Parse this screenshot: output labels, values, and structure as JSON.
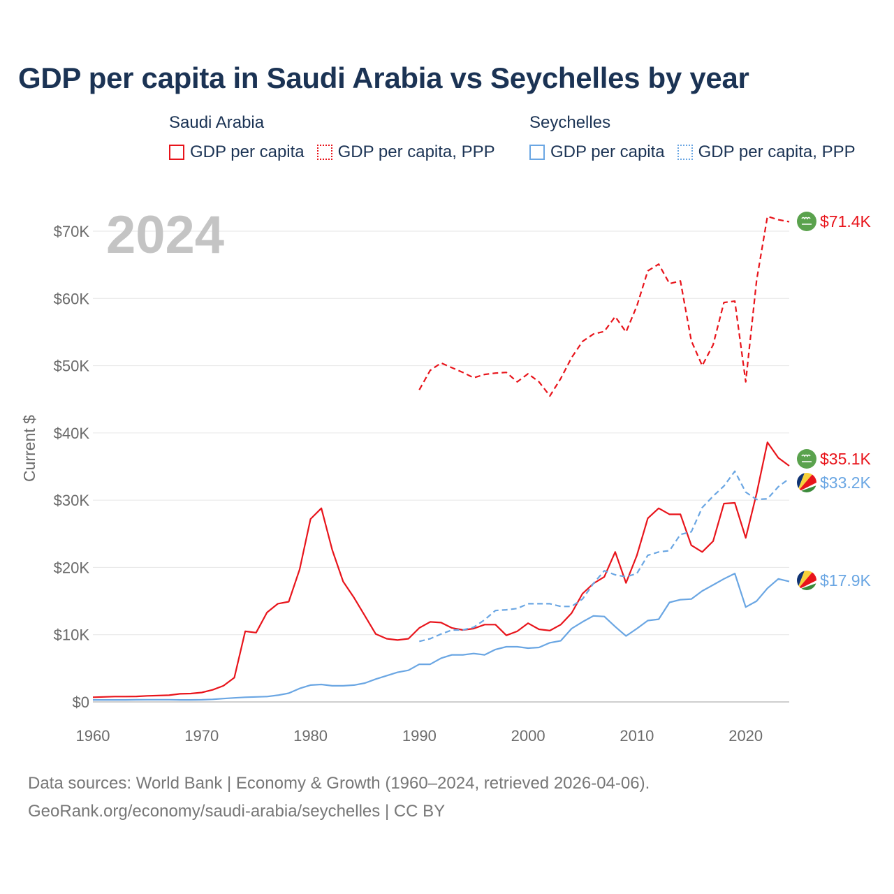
{
  "title": "GDP per capita in Saudi Arabia vs Seychelles by year",
  "legend": {
    "groups": [
      {
        "name": "Saudi Arabia",
        "items": [
          {
            "label": "GDP per capita",
            "color": "#e8141b",
            "style": "solid"
          },
          {
            "label": "GDP per capita, PPP",
            "color": "#e8141b",
            "style": "dotted"
          }
        ]
      },
      {
        "name": "Seychelles",
        "items": [
          {
            "label": "GDP per capita",
            "color": "#6aa6e3",
            "style": "solid"
          },
          {
            "label": "GDP per capita, PPP",
            "color": "#6aa6e3",
            "style": "dotted"
          }
        ]
      }
    ]
  },
  "footer": {
    "line1": "Data sources: World Bank | Economy & Growth (1960–2024, retrieved 2026-04-06).",
    "line2": "GeoRank.org/economy/saudi-arabia/seychelles | CC BY"
  },
  "chart_data": {
    "type": "line",
    "year_label": "2024",
    "ylabel": "Current $",
    "xlim": [
      1960,
      2024
    ],
    "ylim": [
      0,
      70000
    ],
    "x_ticks": [
      1960,
      1970,
      1980,
      1990,
      2000,
      2010,
      2020
    ],
    "x_tick_labels": [
      "1960",
      "1970",
      "1980",
      "1990",
      "2000",
      "2010",
      "2020"
    ],
    "y_ticks": [
      0,
      10000,
      20000,
      30000,
      40000,
      50000,
      60000,
      70000
    ],
    "y_tick_labels": [
      "$0",
      "$10K",
      "$20K",
      "$30K",
      "$40K",
      "$50K",
      "$60K",
      "$70K"
    ],
    "grid": true,
    "series": [
      {
        "name": "Saudi Arabia GDP per capita PPP",
        "color": "#e8141b",
        "dash": "dashed",
        "x": [
          1990,
          1991,
          1992,
          1993,
          1994,
          1995,
          1996,
          1997,
          1998,
          1999,
          2000,
          2001,
          2002,
          2003,
          2004,
          2005,
          2006,
          2007,
          2008,
          2009,
          2010,
          2011,
          2012,
          2013,
          2014,
          2015,
          2016,
          2017,
          2018,
          2019,
          2020,
          2021,
          2022,
          2023,
          2024
        ],
        "values": [
          46400,
          49300,
          50400,
          49700,
          49000,
          48200,
          48700,
          48900,
          49000,
          47600,
          48800,
          47600,
          45500,
          48100,
          51200,
          53600,
          54700,
          55100,
          57300,
          55000,
          58900,
          64100,
          65100,
          62200,
          62600,
          53700,
          50000,
          53100,
          59400,
          59600,
          47600,
          62700,
          72200,
          71700,
          71400
        ],
        "end_label": "$71.4K",
        "icon": "saudi-flag-icon"
      },
      {
        "name": "Saudi Arabia GDP per capita",
        "color": "#e8141b",
        "dash": "solid",
        "x": [
          1960,
          1961,
          1962,
          1963,
          1964,
          1965,
          1966,
          1967,
          1968,
          1969,
          1970,
          1971,
          1972,
          1973,
          1974,
          1975,
          1976,
          1977,
          1978,
          1979,
          1980,
          1981,
          1982,
          1983,
          1984,
          1985,
          1986,
          1987,
          1988,
          1989,
          1990,
          1991,
          1992,
          1993,
          1994,
          1995,
          1996,
          1997,
          1998,
          1999,
          2000,
          2001,
          2002,
          2003,
          2004,
          2005,
          2006,
          2007,
          2008,
          2009,
          2010,
          2011,
          2012,
          2013,
          2014,
          2015,
          2016,
          2017,
          2018,
          2019,
          2020,
          2021,
          2022,
          2023,
          2024
        ],
        "values": [
          700,
          750,
          800,
          800,
          820,
          900,
          950,
          1000,
          1200,
          1250,
          1400,
          1800,
          2400,
          3600,
          10500,
          10300,
          13300,
          14600,
          14900,
          19700,
          27200,
          28800,
          22600,
          17900,
          15500,
          12800,
          10100,
          9400,
          9200,
          9400,
          11000,
          11900,
          11800,
          11000,
          10700,
          10900,
          11500,
          11500,
          9900,
          10500,
          11700,
          10800,
          10600,
          11500,
          13200,
          16100,
          17600,
          18600,
          22300,
          17700,
          21800,
          27300,
          28800,
          27900,
          27900,
          23300,
          22300,
          23900,
          29500,
          29600,
          24400,
          31000,
          38600,
          36300,
          35100
        ],
        "end_label": "$35.1K",
        "icon": "saudi-flag-icon"
      },
      {
        "name": "Seychelles GDP per capita PPP",
        "color": "#6aa6e3",
        "dash": "dashed",
        "x": [
          1990,
          1991,
          1992,
          1993,
          1994,
          1995,
          1996,
          1997,
          1998,
          1999,
          2000,
          2001,
          2002,
          2003,
          2004,
          2005,
          2006,
          2007,
          2008,
          2009,
          2010,
          2011,
          2012,
          2013,
          2014,
          2015,
          2016,
          2017,
          2018,
          2019,
          2020,
          2021,
          2022,
          2023,
          2024
        ],
        "values": [
          9000,
          9400,
          10100,
          10700,
          10700,
          11100,
          12200,
          13600,
          13700,
          13900,
          14600,
          14600,
          14600,
          14200,
          14200,
          15300,
          17600,
          19500,
          18900,
          18600,
          19100,
          21800,
          22300,
          22500,
          24900,
          25300,
          28900,
          30600,
          32100,
          34300,
          31200,
          30100,
          30200,
          32000,
          33200
        ],
        "end_label": "$33.2K",
        "icon": "seychelles-flag-icon"
      },
      {
        "name": "Seychelles GDP per capita",
        "color": "#6aa6e3",
        "dash": "solid",
        "x": [
          1960,
          1961,
          1962,
          1963,
          1964,
          1965,
          1966,
          1967,
          1968,
          1969,
          1970,
          1971,
          1972,
          1973,
          1974,
          1975,
          1976,
          1977,
          1978,
          1979,
          1980,
          1981,
          1982,
          1983,
          1984,
          1985,
          1986,
          1987,
          1988,
          1989,
          1990,
          1991,
          1992,
          1993,
          1994,
          1995,
          1996,
          1997,
          1998,
          1999,
          2000,
          2001,
          2002,
          2003,
          2004,
          2005,
          2006,
          2007,
          2008,
          2009,
          2010,
          2011,
          2012,
          2013,
          2014,
          2015,
          2016,
          2017,
          2018,
          2019,
          2020,
          2021,
          2022,
          2023,
          2024
        ],
        "values": [
          300,
          300,
          300,
          300,
          320,
          330,
          330,
          330,
          300,
          300,
          320,
          380,
          500,
          600,
          700,
          750,
          800,
          1000,
          1300,
          2000,
          2500,
          2600,
          2400,
          2400,
          2500,
          2800,
          3400,
          3900,
          4400,
          4700,
          5600,
          5600,
          6500,
          7000,
          7000,
          7200,
          7000,
          7800,
          8200,
          8200,
          8000,
          8100,
          8800,
          9100,
          10900,
          11900,
          12800,
          12700,
          11200,
          9800,
          10900,
          12100,
          12300,
          14800,
          15200,
          15300,
          16500,
          17400,
          18300,
          19100,
          14100,
          15000,
          16900,
          18300,
          17900
        ],
        "end_label": "$17.9K",
        "icon": "seychelles-flag-icon"
      }
    ]
  }
}
